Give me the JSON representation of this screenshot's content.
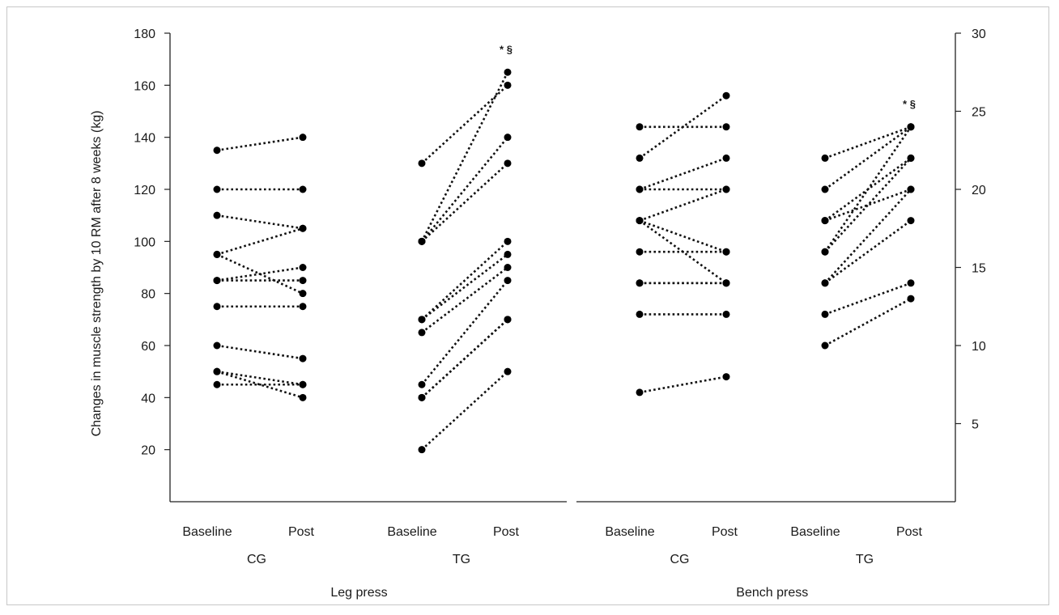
{
  "chart_data": {
    "type": "scatter",
    "ylabel": "Changes in muscle strength by 10 RM after 8 weeks (kg)",
    "left_axis": {
      "ticks": [
        "20",
        "40",
        "60",
        "80",
        "100",
        "120",
        "140",
        "160",
        "180"
      ],
      "ylim": [
        0,
        180
      ]
    },
    "right_axis": {
      "ticks": [
        "5",
        "10",
        "15",
        "20",
        "25",
        "30"
      ],
      "ylim": [
        0,
        30
      ]
    },
    "time_labels": {
      "baseline": "Baseline",
      "post": "Post"
    },
    "panels": [
      {
        "exercise": "Leg press",
        "axis": "left",
        "groups": [
          {
            "group": "CG",
            "annotation": "",
            "pairs": [
              [
                135,
                140
              ],
              [
                120,
                120
              ],
              [
                110,
                105
              ],
              [
                95,
                105
              ],
              [
                95,
                80
              ],
              [
                85,
                90
              ],
              [
                85,
                85
              ],
              [
                75,
                75
              ],
              [
                60,
                55
              ],
              [
                50,
                45
              ],
              [
                50,
                40
              ],
              [
                45,
                45
              ]
            ]
          },
          {
            "group": "TG",
            "annotation": "* §",
            "pairs": [
              [
                130,
                160
              ],
              [
                100,
                165
              ],
              [
                100,
                140
              ],
              [
                100,
                130
              ],
              [
                70,
                100
              ],
              [
                70,
                95
              ],
              [
                65,
                90
              ],
              [
                45,
                85
              ],
              [
                40,
                70
              ],
              [
                40,
                70
              ],
              [
                20,
                50
              ]
            ]
          }
        ]
      },
      {
        "exercise": "Bench press",
        "axis": "right",
        "groups": [
          {
            "group": "CG",
            "annotation": "",
            "pairs": [
              [
                24,
                24
              ],
              [
                22,
                26
              ],
              [
                20,
                22
              ],
              [
                20,
                20
              ],
              [
                18,
                20
              ],
              [
                18,
                16
              ],
              [
                18,
                14
              ],
              [
                16,
                16
              ],
              [
                14,
                14
              ],
              [
                14,
                14
              ],
              [
                12,
                12
              ],
              [
                7,
                8
              ]
            ]
          },
          {
            "group": "TG",
            "annotation": "* §",
            "pairs": [
              [
                22,
                24
              ],
              [
                20,
                24
              ],
              [
                18,
                22
              ],
              [
                18,
                20
              ],
              [
                16,
                24
              ],
              [
                16,
                22
              ],
              [
                14,
                20
              ],
              [
                14,
                18
              ],
              [
                12,
                14
              ],
              [
                10,
                13
              ]
            ]
          }
        ]
      }
    ]
  }
}
